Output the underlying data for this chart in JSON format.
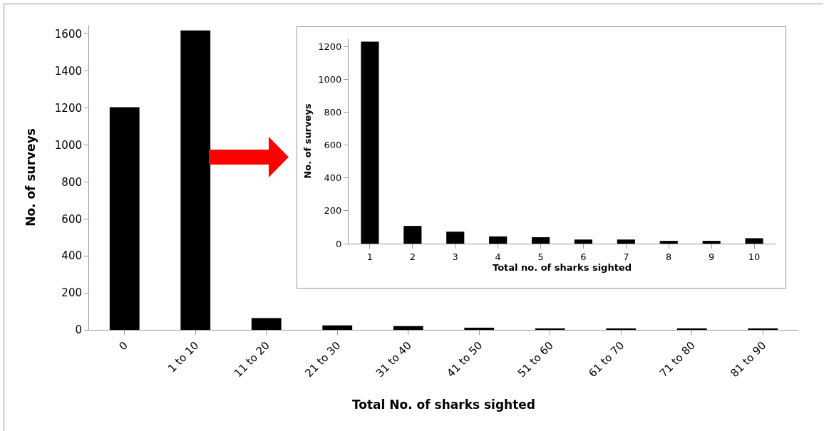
{
  "chart_data": [
    {
      "type": "bar",
      "xlabel": "Total No. of sharks sighted",
      "ylabel": "No. of surveys",
      "categories": [
        "0",
        "1 to 10",
        "11 to 20",
        "21 to 30",
        "31 to 40",
        "41 to 50",
        "51 to 60",
        "61 to 70",
        "71 to 80",
        "81 to 90"
      ],
      "values": [
        1205,
        1620,
        64,
        24,
        20,
        12,
        6,
        6,
        6,
        6
      ],
      "color": "#000000",
      "ylim": [
        0,
        1650
      ],
      "yticks": [
        0,
        200,
        400,
        600,
        800,
        1000,
        1200,
        1400,
        1600
      ],
      "grid": false
    },
    {
      "type": "bar",
      "xlabel": "Total no. of sharks sighted",
      "ylabel": "No. of surveys",
      "categories": [
        "1",
        "2",
        "3",
        "4",
        "5",
        "6",
        "7",
        "8",
        "9",
        "10"
      ],
      "values": [
        1231,
        108,
        73,
        44,
        39,
        25,
        25,
        17,
        17,
        33
      ],
      "color": "#000000",
      "ylim": [
        0,
        1250
      ],
      "yticks": [
        0,
        200,
        400,
        600,
        800,
        1000,
        1200
      ],
      "grid": false
    }
  ]
}
